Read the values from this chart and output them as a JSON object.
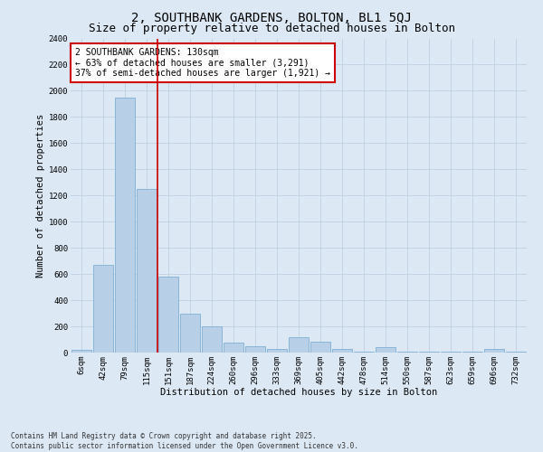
{
  "title": "2, SOUTHBANK GARDENS, BOLTON, BL1 5QJ",
  "subtitle": "Size of property relative to detached houses in Bolton",
  "xlabel": "Distribution of detached houses by size in Bolton",
  "ylabel": "Number of detached properties",
  "categories": [
    "6sqm",
    "42sqm",
    "79sqm",
    "115sqm",
    "151sqm",
    "187sqm",
    "224sqm",
    "260sqm",
    "296sqm",
    "333sqm",
    "369sqm",
    "405sqm",
    "442sqm",
    "478sqm",
    "514sqm",
    "550sqm",
    "587sqm",
    "623sqm",
    "659sqm",
    "696sqm",
    "732sqm"
  ],
  "values": [
    20,
    670,
    1950,
    1250,
    580,
    300,
    200,
    75,
    50,
    30,
    120,
    80,
    30,
    5,
    40,
    5,
    5,
    5,
    5,
    30,
    5
  ],
  "bar_color": "#b8cfe8",
  "bar_edge_color": "#7fafd4",
  "vline_x_index": 3.5,
  "vline_color": "#cc0000",
  "annotation_text": "2 SOUTHBANK GARDENS: 130sqm\n← 63% of detached houses are smaller (3,291)\n37% of semi-detached houses are larger (1,921) →",
  "annotation_box_facecolor": "#ffffff",
  "annotation_box_edgecolor": "#cc0000",
  "ylim": [
    0,
    2400
  ],
  "yticks": [
    0,
    200,
    400,
    600,
    800,
    1000,
    1200,
    1400,
    1600,
    1800,
    2000,
    2200,
    2400
  ],
  "grid_color": "#c0d0e0",
  "background_color": "#dce8f4",
  "footer_text": "Contains HM Land Registry data © Crown copyright and database right 2025.\nContains public sector information licensed under the Open Government Licence v3.0.",
  "title_fontsize": 10,
  "subtitle_fontsize": 9,
  "axis_label_fontsize": 7.5,
  "tick_fontsize": 6.5,
  "annotation_fontsize": 7,
  "footer_fontsize": 5.5
}
